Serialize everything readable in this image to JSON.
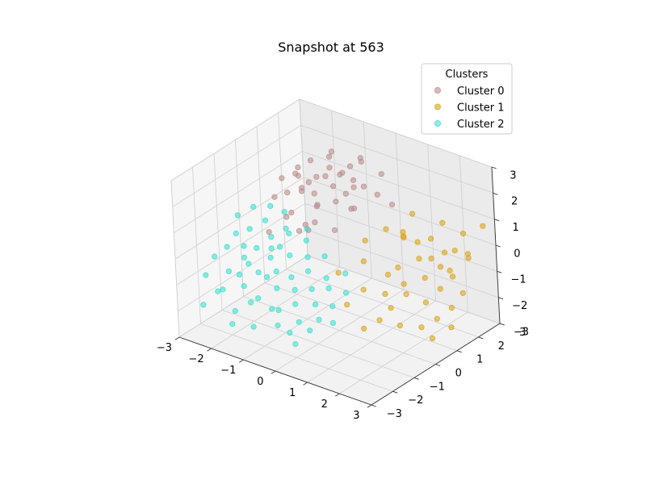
{
  "chart_data": {
    "type": "scatter",
    "title": "Snapshot at 563",
    "projection": "3d",
    "xlim": [
      -3,
      3
    ],
    "ylim": [
      -3,
      3
    ],
    "zlim": [
      -3,
      3
    ],
    "x_ticks": [
      "−3",
      "−2",
      "−1",
      "0",
      "1",
      "2",
      "3"
    ],
    "y_ticks": [
      "−3",
      "−2",
      "−1",
      "0",
      "1",
      "2",
      "3"
    ],
    "z_ticks": [
      "−3",
      "−2",
      "−1",
      "0",
      "1",
      "2",
      "3"
    ],
    "grid": true,
    "legend": {
      "title": "Clusters",
      "placement": "top-right"
    },
    "series": [
      {
        "name": "Cluster 0",
        "color": "#bc8f8f",
        "points": [
          [
            -1.8,
            0.3,
            1.9
          ],
          [
            -1.5,
            0.5,
            2.1
          ],
          [
            -1.3,
            0.8,
            1.7
          ],
          [
            -1.2,
            0.2,
            2.3
          ],
          [
            -1.0,
            0.6,
            1.5
          ],
          [
            -0.9,
            1.0,
            2.0
          ],
          [
            -0.8,
            0.4,
            1.2
          ],
          [
            -0.6,
            0.9,
            1.8
          ],
          [
            -0.5,
            1.2,
            2.2
          ],
          [
            -0.4,
            0.7,
            1.4
          ],
          [
            -0.3,
            1.4,
            1.9
          ],
          [
            -0.2,
            1.1,
            1.0
          ],
          [
            -1.6,
            0.9,
            1.3
          ],
          [
            -1.4,
            1.3,
            1.6
          ],
          [
            -1.1,
            1.5,
            2.4
          ],
          [
            -0.7,
            1.6,
            1.1
          ],
          [
            -2.0,
            0.8,
            1.0
          ],
          [
            -1.9,
            1.2,
            1.8
          ],
          [
            -1.7,
            1.5,
            2.0
          ],
          [
            -1.3,
            1.9,
            2.3
          ],
          [
            -1.0,
            1.8,
            1.6
          ],
          [
            -0.8,
            2.0,
            1.9
          ],
          [
            -0.6,
            2.2,
            2.2
          ],
          [
            -0.4,
            2.0,
            1.3
          ],
          [
            -1.5,
            0.0,
            0.7
          ],
          [
            -1.2,
            -0.2,
            1.1
          ],
          [
            -0.9,
            0.1,
            0.4
          ],
          [
            -0.7,
            -0.3,
            0.9
          ],
          [
            -0.2,
            0.3,
            0.6
          ],
          [
            -1.8,
            -0.4,
            0.2
          ],
          [
            -1.4,
            0.4,
            0.0
          ],
          [
            -1.1,
            0.7,
            0.3
          ],
          [
            -0.5,
            0.0,
            1.6
          ],
          [
            0.1,
            0.8,
            1.3
          ],
          [
            0.3,
            1.6,
            1.5
          ],
          [
            -0.3,
            1.8,
            2.4
          ],
          [
            -1.6,
            2.2,
            1.4
          ],
          [
            -2.1,
            1.6,
            0.6
          ],
          [
            -2.2,
            0.5,
            0.9
          ],
          [
            -1.0,
            2.4,
            0.8
          ],
          [
            -0.1,
            2.4,
            1.7
          ],
          [
            0.4,
            2.1,
            0.9
          ]
        ]
      },
      {
        "name": "Cluster 1",
        "color": "#daa520",
        "points": [
          [
            1.2,
            1.4,
            0.4
          ],
          [
            1.5,
            1.6,
            0.2
          ],
          [
            1.8,
            1.2,
            -0.1
          ],
          [
            2.0,
            1.5,
            0.6
          ],
          [
            2.2,
            1.8,
            0.0
          ],
          [
            1.4,
            0.8,
            -0.4
          ],
          [
            1.7,
            0.6,
            -0.8
          ],
          [
            2.1,
            1.0,
            -0.6
          ],
          [
            2.4,
            1.3,
            -0.2
          ],
          [
            2.6,
            1.7,
            0.3
          ],
          [
            1.0,
            0.9,
            -0.9
          ],
          [
            1.3,
            0.3,
            -1.2
          ],
          [
            1.6,
            0.1,
            -1.5
          ],
          [
            1.9,
            0.4,
            -1.0
          ],
          [
            2.3,
            0.7,
            -1.3
          ],
          [
            2.5,
            1.1,
            -0.9
          ],
          [
            2.7,
            1.4,
            -0.5
          ],
          [
            2.8,
            2.0,
            0.1
          ],
          [
            1.1,
            2.0,
            0.9
          ],
          [
            1.9,
            2.2,
            0.8
          ],
          [
            2.4,
            2.4,
            0.5
          ],
          [
            2.9,
            2.6,
            0.9
          ],
          [
            0.8,
            1.2,
            0.6
          ],
          [
            0.6,
            0.4,
            -0.3
          ],
          [
            0.9,
            -0.1,
            -1.0
          ],
          [
            1.5,
            -0.3,
            -1.8
          ],
          [
            2.0,
            -0.1,
            -1.9
          ],
          [
            2.4,
            0.3,
            -2.0
          ],
          [
            2.7,
            0.6,
            -1.7
          ],
          [
            2.9,
            1.0,
            -1.4
          ],
          [
            3.0,
            1.4,
            -1.0
          ],
          [
            1.2,
            -0.6,
            -2.1
          ],
          [
            0.4,
            0.8,
            0.2
          ],
          [
            0.2,
            -0.2,
            -0.6
          ],
          [
            2.2,
            2.0,
            -0.8
          ],
          [
            2.6,
            2.3,
            -0.3
          ],
          [
            1.7,
            1.9,
            -0.5
          ],
          [
            1.0,
            1.7,
            0.1
          ],
          [
            0.7,
            -0.6,
            -1.4
          ],
          [
            1.4,
            1.1,
            0.8
          ],
          [
            2.8,
            0.2,
            -2.2
          ],
          [
            3.0,
            0.8,
            -2.0
          ]
        ]
      },
      {
        "name": "Cluster 2",
        "color": "#40e0d0",
        "points": [
          [
            -2.8,
            -1.5,
            -0.6
          ],
          [
            -2.6,
            -1.2,
            -0.3
          ],
          [
            -2.5,
            -0.9,
            0.1
          ],
          [
            -2.3,
            -1.6,
            -0.9
          ],
          [
            -2.2,
            -0.7,
            0.3
          ],
          [
            -2.0,
            -1.3,
            -0.4
          ],
          [
            -1.9,
            -0.4,
            0.6
          ],
          [
            -1.8,
            -1.0,
            -0.1
          ],
          [
            -1.7,
            -1.8,
            -1.1
          ],
          [
            -1.6,
            -0.6,
            0.2
          ],
          [
            -1.5,
            -1.4,
            -0.7
          ],
          [
            -1.4,
            -0.2,
            0.4
          ],
          [
            -1.3,
            -1.1,
            -0.2
          ],
          [
            -1.2,
            -1.9,
            -1.3
          ],
          [
            -1.1,
            -0.5,
            0.5
          ],
          [
            -1.0,
            -1.3,
            -0.5
          ],
          [
            -0.9,
            -0.8,
            -0.1
          ],
          [
            -0.8,
            -1.6,
            -0.9
          ],
          [
            -0.7,
            -0.3,
            0.3
          ],
          [
            -0.6,
            -1.2,
            -0.6
          ],
          [
            -0.5,
            -2.0,
            -1.4
          ],
          [
            -0.4,
            -0.7,
            0.0
          ],
          [
            -0.3,
            -1.5,
            -0.8
          ],
          [
            -0.2,
            -1.0,
            -0.3
          ],
          [
            -0.1,
            -1.8,
            -1.1
          ],
          [
            0.0,
            -0.5,
            0.1
          ],
          [
            0.1,
            -1.3,
            -0.7
          ],
          [
            0.2,
            -2.1,
            -1.5
          ],
          [
            0.3,
            -0.9,
            -0.4
          ],
          [
            0.4,
            -1.6,
            -1.0
          ],
          [
            0.5,
            -1.1,
            -0.6
          ],
          [
            0.6,
            -2.2,
            -1.6
          ],
          [
            0.7,
            -0.6,
            -0.2
          ],
          [
            0.8,
            -1.4,
            -1.0
          ],
          [
            0.9,
            -0.9,
            -0.7
          ],
          [
            1.0,
            -1.7,
            -1.4
          ],
          [
            -2.4,
            -2.0,
            -1.5
          ],
          [
            -2.1,
            -2.2,
            -1.2
          ],
          [
            -1.9,
            -1.7,
            -0.8
          ],
          [
            -1.6,
            -2.4,
            -1.7
          ],
          [
            -1.3,
            -2.1,
            -1.4
          ],
          [
            -2.7,
            -0.5,
            0.5
          ],
          [
            -2.4,
            -0.2,
            0.8
          ],
          [
            -2.0,
            0.0,
            0.9
          ],
          [
            -1.7,
            0.2,
            0.7
          ],
          [
            -1.4,
            -0.9,
            0.0
          ],
          [
            -1.1,
            -1.6,
            -0.6
          ],
          [
            -0.8,
            -0.1,
            0.6
          ],
          [
            -0.5,
            -2.3,
            -1.2
          ],
          [
            -0.2,
            -2.5,
            -1.6
          ],
          [
            0.1,
            -2.4,
            -1.8
          ],
          [
            0.4,
            -2.6,
            -2.0
          ],
          [
            -2.9,
            -1.8,
            -1.2
          ],
          [
            -2.6,
            -2.4,
            -1.9
          ],
          [
            -1.5,
            -2.7,
            -2.0
          ],
          [
            0.7,
            -1.9,
            -1.3
          ],
          [
            -0.9,
            -2.6,
            -1.9
          ],
          [
            -2.2,
            -1.0,
            -0.2
          ],
          [
            -1.8,
            -1.4,
            -0.5
          ],
          [
            -1.2,
            -0.8,
            0.1
          ]
        ]
      }
    ]
  }
}
